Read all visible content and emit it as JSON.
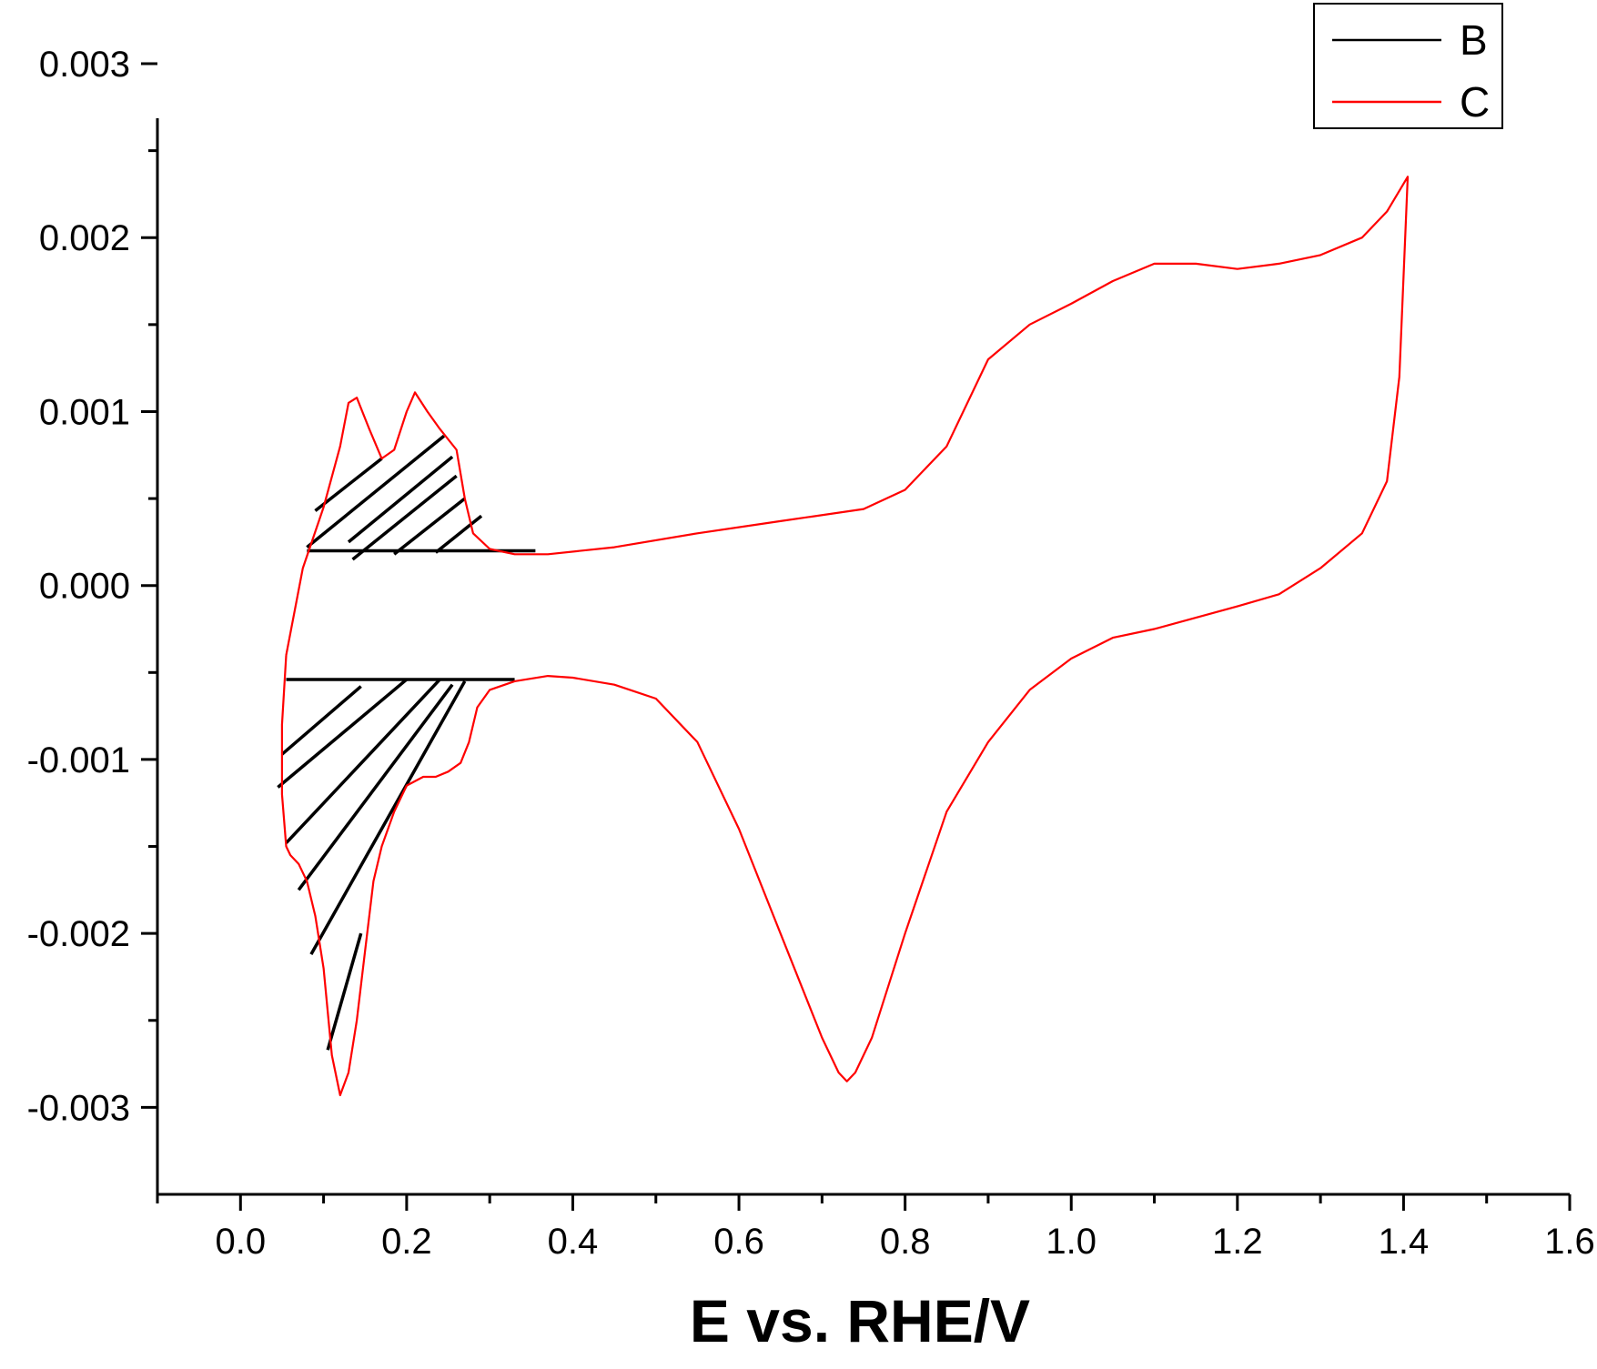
{
  "chart_data": {
    "type": "line",
    "title": "",
    "xlabel": "E vs. RHE/V",
    "ylabel": "",
    "xlim": [
      -0.1,
      1.6
    ],
    "ylim": [
      -0.0035,
      0.003
    ],
    "x_ticks": [
      "0.0",
      "0.2",
      "0.4",
      "0.6",
      "0.8",
      "1.0",
      "1.2",
      "1.4",
      "1.6"
    ],
    "x_tick_values": [
      0,
      0.2,
      0.4,
      0.6,
      0.8,
      1.0,
      1.2,
      1.4,
      1.6
    ],
    "y_ticks": [
      "0.003",
      "0.002",
      "0.001",
      "0.000",
      "-0.001",
      "-0.002",
      "-0.003"
    ],
    "y_tick_values": [
      0.003,
      0.002,
      0.001,
      0,
      -0.001,
      -0.002,
      -0.003
    ],
    "grid": false,
    "legend_position": "top-right",
    "series": [
      {
        "name": "B",
        "color": "#000000",
        "style": "hatch",
        "segments": [
          [
            [
              0.08,
              0.0002
            ],
            [
              0.355,
              0.0002
            ]
          ],
          [
            [
              0.055,
              -0.00054
            ],
            [
              0.33,
              -0.00054
            ]
          ],
          [
            [
              0.09,
              0.00043
            ],
            [
              0.17,
              0.00073
            ]
          ],
          [
            [
              0.08,
              0.00022
            ],
            [
              0.245,
              0.00086
            ]
          ],
          [
            [
              0.13,
              0.00025
            ],
            [
              0.255,
              0.00074
            ]
          ],
          [
            [
              0.135,
              0.00015
            ],
            [
              0.26,
              0.00063
            ]
          ],
          [
            [
              0.185,
              0.00018
            ],
            [
              0.27,
              0.0005
            ]
          ],
          [
            [
              0.235,
              0.00019
            ],
            [
              0.29,
              0.0004
            ]
          ],
          [
            [
              0.05,
              -0.00097
            ],
            [
              0.145,
              -0.00058
            ]
          ],
          [
            [
              0.045,
              -0.00116
            ],
            [
              0.2,
              -0.00054
            ]
          ],
          [
            [
              0.055,
              -0.00148
            ],
            [
              0.24,
              -0.00054
            ]
          ],
          [
            [
              0.07,
              -0.00175
            ],
            [
              0.255,
              -0.00057
            ]
          ],
          [
            [
              0.085,
              -0.00212
            ],
            [
              0.27,
              -0.00055
            ]
          ],
          [
            [
              0.105,
              -0.00267
            ],
            [
              0.145,
              -0.002
            ]
          ]
        ]
      },
      {
        "name": "C",
        "color": "#ff0000",
        "style": "line",
        "x": [
          0.055,
          0.075,
          0.1,
          0.12,
          0.13,
          0.14,
          0.155,
          0.17,
          0.185,
          0.2,
          0.21,
          0.225,
          0.24,
          0.26,
          0.27,
          0.28,
          0.3,
          0.33,
          0.37,
          0.45,
          0.55,
          0.65,
          0.75,
          0.8,
          0.85,
          0.9,
          0.95,
          1.0,
          1.05,
          1.1,
          1.15,
          1.2,
          1.25,
          1.3,
          1.35,
          1.38,
          1.405,
          1.395,
          1.38,
          1.35,
          1.3,
          1.25,
          1.2,
          1.1,
          1.05,
          1.0,
          0.95,
          0.9,
          0.85,
          0.8,
          0.76,
          0.74,
          0.73,
          0.72,
          0.7,
          0.65,
          0.6,
          0.55,
          0.5,
          0.45,
          0.4,
          0.37,
          0.33,
          0.3,
          0.285,
          0.275,
          0.265,
          0.25,
          0.235,
          0.22,
          0.2,
          0.185,
          0.17,
          0.16,
          0.15,
          0.14,
          0.13,
          0.12,
          0.11,
          0.1,
          0.09,
          0.08,
          0.07,
          0.06,
          0.055,
          0.05,
          0.05,
          0.055
        ],
        "y": [
          -0.0004,
          0.0001,
          0.00045,
          0.0008,
          0.00105,
          0.00108,
          0.0009,
          0.00073,
          0.00078,
          0.001,
          0.00111,
          0.001,
          0.0009,
          0.00078,
          0.0005,
          0.0003,
          0.00021,
          0.00018,
          0.00018,
          0.00022,
          0.0003,
          0.00037,
          0.00044,
          0.00055,
          0.0008,
          0.0013,
          0.0015,
          0.00162,
          0.00175,
          0.00185,
          0.00185,
          0.00182,
          0.00185,
          0.0019,
          0.002,
          0.00215,
          0.00235,
          0.0012,
          0.0006,
          0.0003,
          0.0001,
          -5e-05,
          -0.00012,
          -0.00025,
          -0.0003,
          -0.00042,
          -0.0006,
          -0.0009,
          -0.0013,
          -0.002,
          -0.0026,
          -0.0028,
          -0.00285,
          -0.0028,
          -0.0026,
          -0.002,
          -0.0014,
          -0.0009,
          -0.00065,
          -0.00057,
          -0.00053,
          -0.00052,
          -0.00055,
          -0.0006,
          -0.0007,
          -0.0009,
          -0.00102,
          -0.00107,
          -0.0011,
          -0.0011,
          -0.00115,
          -0.0013,
          -0.0015,
          -0.0017,
          -0.0021,
          -0.0025,
          -0.0028,
          -0.00293,
          -0.0027,
          -0.0022,
          -0.0019,
          -0.0017,
          -0.0016,
          -0.00155,
          -0.0015,
          -0.0012,
          -0.0008,
          -0.0004
        ]
      }
    ]
  }
}
